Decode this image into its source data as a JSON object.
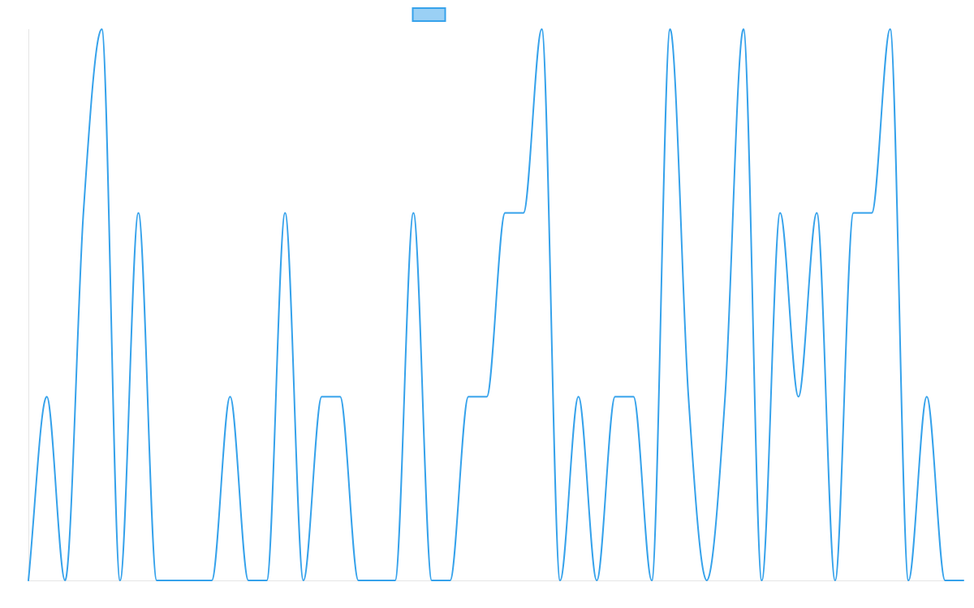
{
  "chart_data": {
    "type": "line",
    "title": "",
    "xlabel": "",
    "ylabel": "",
    "grid": false,
    "legend_position": "top-center",
    "x": [
      0,
      1,
      2,
      3,
      4,
      5,
      6,
      7,
      8,
      9,
      10,
      11,
      12,
      13,
      14,
      15,
      16,
      17,
      18,
      19,
      20,
      21,
      22,
      23,
      24,
      25,
      26,
      27,
      28,
      29,
      30,
      31,
      32,
      33,
      34,
      35,
      36,
      37,
      38,
      39,
      40,
      41,
      42,
      43,
      44,
      45,
      46,
      47,
      48,
      49,
      50,
      51
    ],
    "xlim": [
      0,
      51
    ],
    "ylim": [
      0,
      3
    ],
    "series": [
      {
        "name": "",
        "color": "#36a2eb",
        "fill_color": "#9ad0f5",
        "values": [
          0,
          1,
          0,
          2,
          3,
          0,
          2,
          0,
          0,
          0,
          0,
          1,
          0,
          0,
          2,
          0,
          1,
          1,
          0,
          0,
          0,
          2,
          0,
          0,
          1,
          1,
          2,
          2,
          3,
          0,
          1,
          0,
          1,
          1,
          0,
          3,
          1,
          0,
          1,
          3,
          0,
          2,
          1,
          2,
          0,
          2,
          2,
          3,
          0,
          1,
          0,
          0
        ]
      }
    ]
  }
}
